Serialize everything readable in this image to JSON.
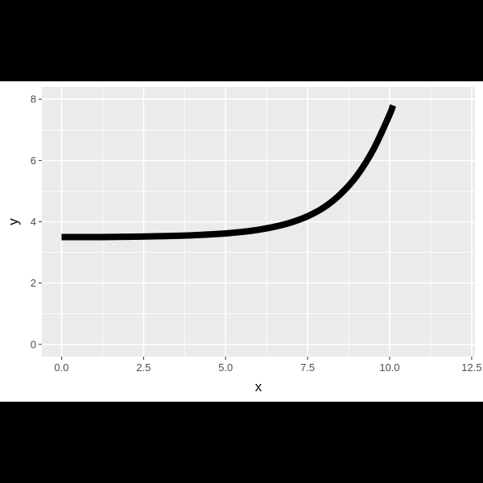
{
  "chart_data": {
    "type": "line",
    "xlabel": "x",
    "ylabel": "y",
    "xlim": [
      -0.6,
      12.6
    ],
    "ylim": [
      -0.4,
      8.4
    ],
    "x_ticks": [
      0.0,
      2.5,
      5.0,
      7.5,
      10.0,
      12.5
    ],
    "x_tick_labels": [
      "0.0",
      "2.5",
      "5.0",
      "7.5",
      "10.0",
      "12.5"
    ],
    "y_ticks": [
      0,
      2,
      4,
      6,
      8
    ],
    "y_tick_labels": [
      "0",
      "2",
      "4",
      "6",
      "8"
    ],
    "grid": true,
    "legend": "none",
    "series": [
      {
        "color": "#000000",
        "x": [
          0,
          1,
          2,
          3,
          4,
          5,
          5.5,
          6,
          6.5,
          7,
          7.5,
          8,
          8.5,
          9,
          9.5,
          10,
          10.1
        ],
        "y": [
          3.5,
          3.5,
          3.51,
          3.53,
          3.56,
          3.62,
          3.67,
          3.74,
          3.84,
          3.98,
          4.18,
          4.47,
          4.9,
          5.5,
          6.35,
          7.5,
          7.8
        ]
      }
    ]
  }
}
